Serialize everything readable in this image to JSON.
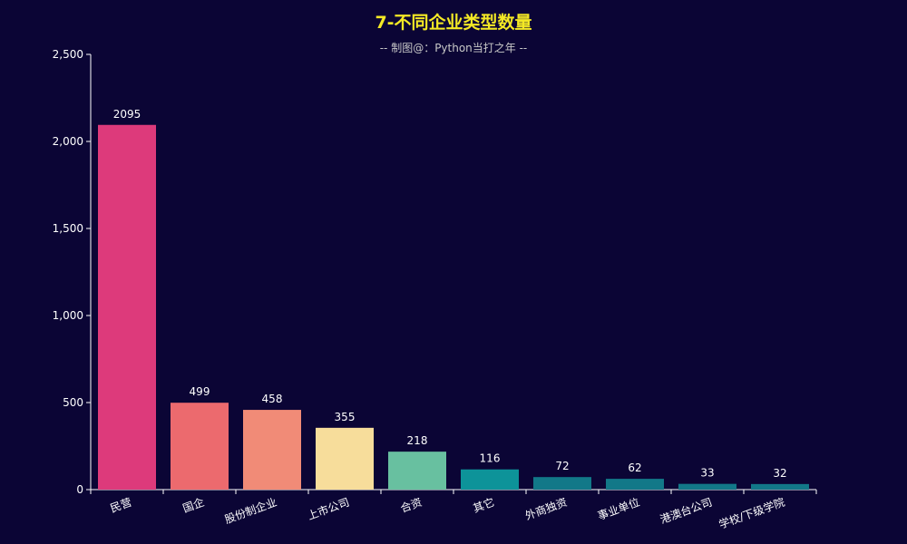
{
  "title": "7-不同企业类型数量",
  "subtitle": "-- 制图@：Python当打之年 --",
  "colors": {
    "background": "#0b0535",
    "title": "#f4e925",
    "subtitle": "#c8c8c8",
    "axis": "#ffffff"
  },
  "chart_data": {
    "type": "bar",
    "categories": [
      "民营",
      "国企",
      "股份制企业",
      "上市公司",
      "合资",
      "其它",
      "外商独资",
      "事业单位",
      "港澳台公司",
      "学校/下级学院"
    ],
    "values": [
      2095,
      499,
      458,
      355,
      218,
      116,
      72,
      62,
      33,
      32
    ],
    "bar_colors": [
      "#dd3a7b",
      "#ec6a6e",
      "#f18b77",
      "#f7dd9b",
      "#68c0a0",
      "#0d9399",
      "#127888",
      "#127888",
      "#127888",
      "#127888"
    ],
    "ylim": [
      0,
      2500
    ],
    "yticks": [
      0,
      500,
      1000,
      1500,
      2000,
      2500
    ],
    "ytick_labels": [
      "0",
      "500",
      "1,000",
      "1,500",
      "2,000",
      "2,500"
    ],
    "grid": false,
    "xlabel": "",
    "ylabel": ""
  }
}
